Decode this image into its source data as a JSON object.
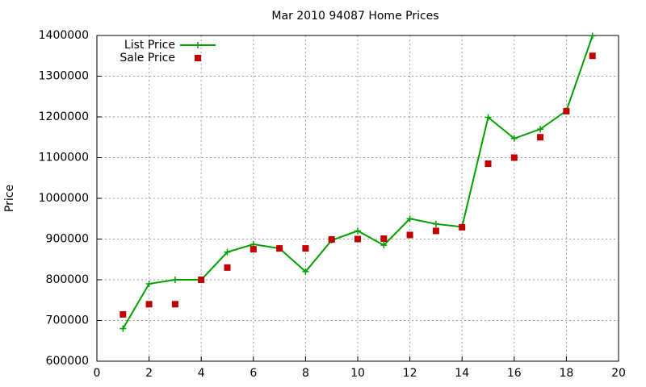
{
  "chart_data": {
    "type": "line",
    "title": "Mar 2010 94087 Home Prices",
    "y_label": "Price",
    "x": [
      1,
      2,
      3,
      4,
      5,
      6,
      7,
      8,
      9,
      10,
      11,
      12,
      13,
      14,
      15,
      16,
      17,
      18,
      19
    ],
    "series": [
      {
        "name": "List Price",
        "color": "#00a000",
        "line": true,
        "marker": "plus",
        "values": [
          680000,
          790000,
          800000,
          800000,
          868000,
          887000,
          877000,
          820000,
          897000,
          920000,
          885000,
          950000,
          937000,
          930000,
          1199000,
          1147000,
          1170000,
          1215000,
          1399000
        ]
      },
      {
        "name": "Sale Price",
        "color": "#c00000",
        "line": false,
        "marker": "square",
        "values": [
          715000,
          740000,
          740000,
          800000,
          830000,
          875000,
          877000,
          877000,
          899000,
          900000,
          901000,
          910000,
          920000,
          929000,
          1085000,
          1100000,
          1150000,
          1214000,
          1350000
        ]
      }
    ],
    "xlim": [
      0,
      20
    ],
    "xticks": [
      0,
      2,
      4,
      6,
      8,
      10,
      12,
      14,
      16,
      18,
      20
    ],
    "ylim": [
      600000,
      1400000
    ],
    "yticks": [
      600000,
      700000,
      800000,
      900000,
      1000000,
      1100000,
      1200000,
      1300000,
      1400000
    ],
    "grid": true,
    "legend": "top-left"
  }
}
